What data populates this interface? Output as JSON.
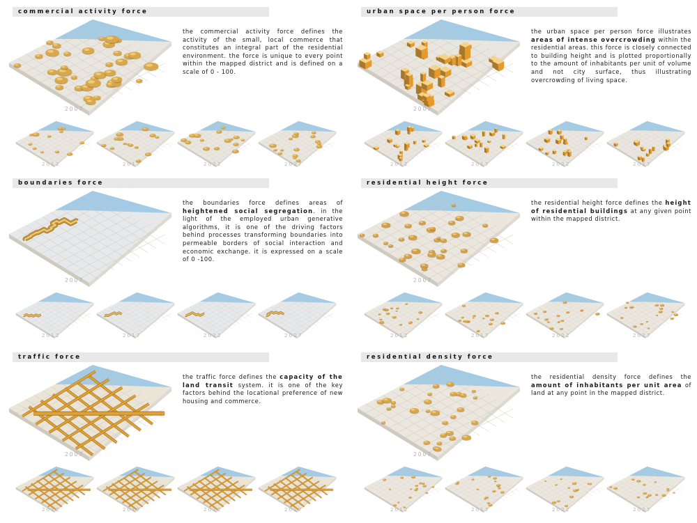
{
  "panels": [
    {
      "key": "commercial",
      "title": "commercial activity force",
      "desc": [
        {
          "t": "The commercial activity force defines the activity of the small, local commerce that constitutes an integral part of the residential environment. The force is unique to every point within the mapped district and is defined on a scale of 0 - 100.",
          "b": false
        }
      ],
      "main_year": "2007",
      "years": [
        "2012",
        "2017",
        "2022",
        "2027"
      ],
      "pattern": "blobs",
      "colors": {
        "sky": "#9cc8e4",
        "base": "#e9e6df",
        "gold": "#d8a84a"
      }
    },
    {
      "key": "urban",
      "title": "urban space per person force",
      "desc": [
        {
          "t": "The urban space per person force illustrates ",
          "b": false
        },
        {
          "t": "areas of intense overcrowding",
          "b": true
        },
        {
          "t": " within the residential areas. This force is closely connected to building height and is plotted proportionally to the amount of inhabitants per unit of volume and not city surface, thus illustrating overcrowding of living space.",
          "b": false
        }
      ],
      "main_year": "2007",
      "years": [
        "2012",
        "2017",
        "2022",
        "2027"
      ],
      "pattern": "blocks",
      "colors": {
        "sky": "#9cc8e4",
        "base": "#e9e6df",
        "gold": "#e79a2c"
      }
    },
    {
      "key": "boundaries",
      "title": "boundaries force",
      "desc": [
        {
          "t": "The boundaries force defines areas of ",
          "b": false
        },
        {
          "t": "heightened social segregation",
          "b": true
        },
        {
          "t": ". In the light of the employed urban generative algorithms, it is one of the driving factors behind processes transforming boundaries into permeable borders of social interaction and economic exchange. It is expressed on a scale of 0 -100.",
          "b": false
        }
      ],
      "main_year": "2007",
      "years": [
        "2012",
        "2017",
        "2022",
        "2027"
      ],
      "pattern": "walls",
      "colors": {
        "sky": "#9cc8e4",
        "base": "#e6e8ea",
        "gold": "#c99b3e"
      }
    },
    {
      "key": "height",
      "title": "residential height force",
      "desc": [
        {
          "t": "The residential height force defines the ",
          "b": false
        },
        {
          "t": "height of residential buildings",
          "b": true
        },
        {
          "t": " at any given point within the mapped district.",
          "b": false
        }
      ],
      "main_year": "2007",
      "years": [
        "2012",
        "2017",
        "2022",
        "2027"
      ],
      "pattern": "pods",
      "colors": {
        "sky": "#9cc8e4",
        "base": "#ebe7df",
        "gold": "#d3a04a"
      }
    },
    {
      "key": "traffic",
      "title": "traffic force",
      "desc": [
        {
          "t": "The traffic force defines the ",
          "b": false
        },
        {
          "t": "capacity of the land transit",
          "b": true
        },
        {
          "t": " system. It is one of the key factors behind the locational preference of new housing and commerce.",
          "b": false
        }
      ],
      "main_year": "2007",
      "years": [
        "2012",
        "2017",
        "2022",
        "2027"
      ],
      "pattern": "roads",
      "colors": {
        "sky": "#9cc8e4",
        "base": "#ebe5d8",
        "gold": "#e0a234"
      }
    },
    {
      "key": "density",
      "title": "residential density force",
      "desc": [
        {
          "t": "The residential density force defines the ",
          "b": false
        },
        {
          "t": "amount of inhabitants per unit area",
          "b": true
        },
        {
          "t": " of land at any point in the mapped district.",
          "b": false
        }
      ],
      "main_year": "2007",
      "years": [
        "2012",
        "2017",
        "2022",
        "2027"
      ],
      "pattern": "pods",
      "colors": {
        "sky": "#9cc8e4",
        "base": "#ebe7df",
        "gold": "#d9a649"
      }
    }
  ]
}
